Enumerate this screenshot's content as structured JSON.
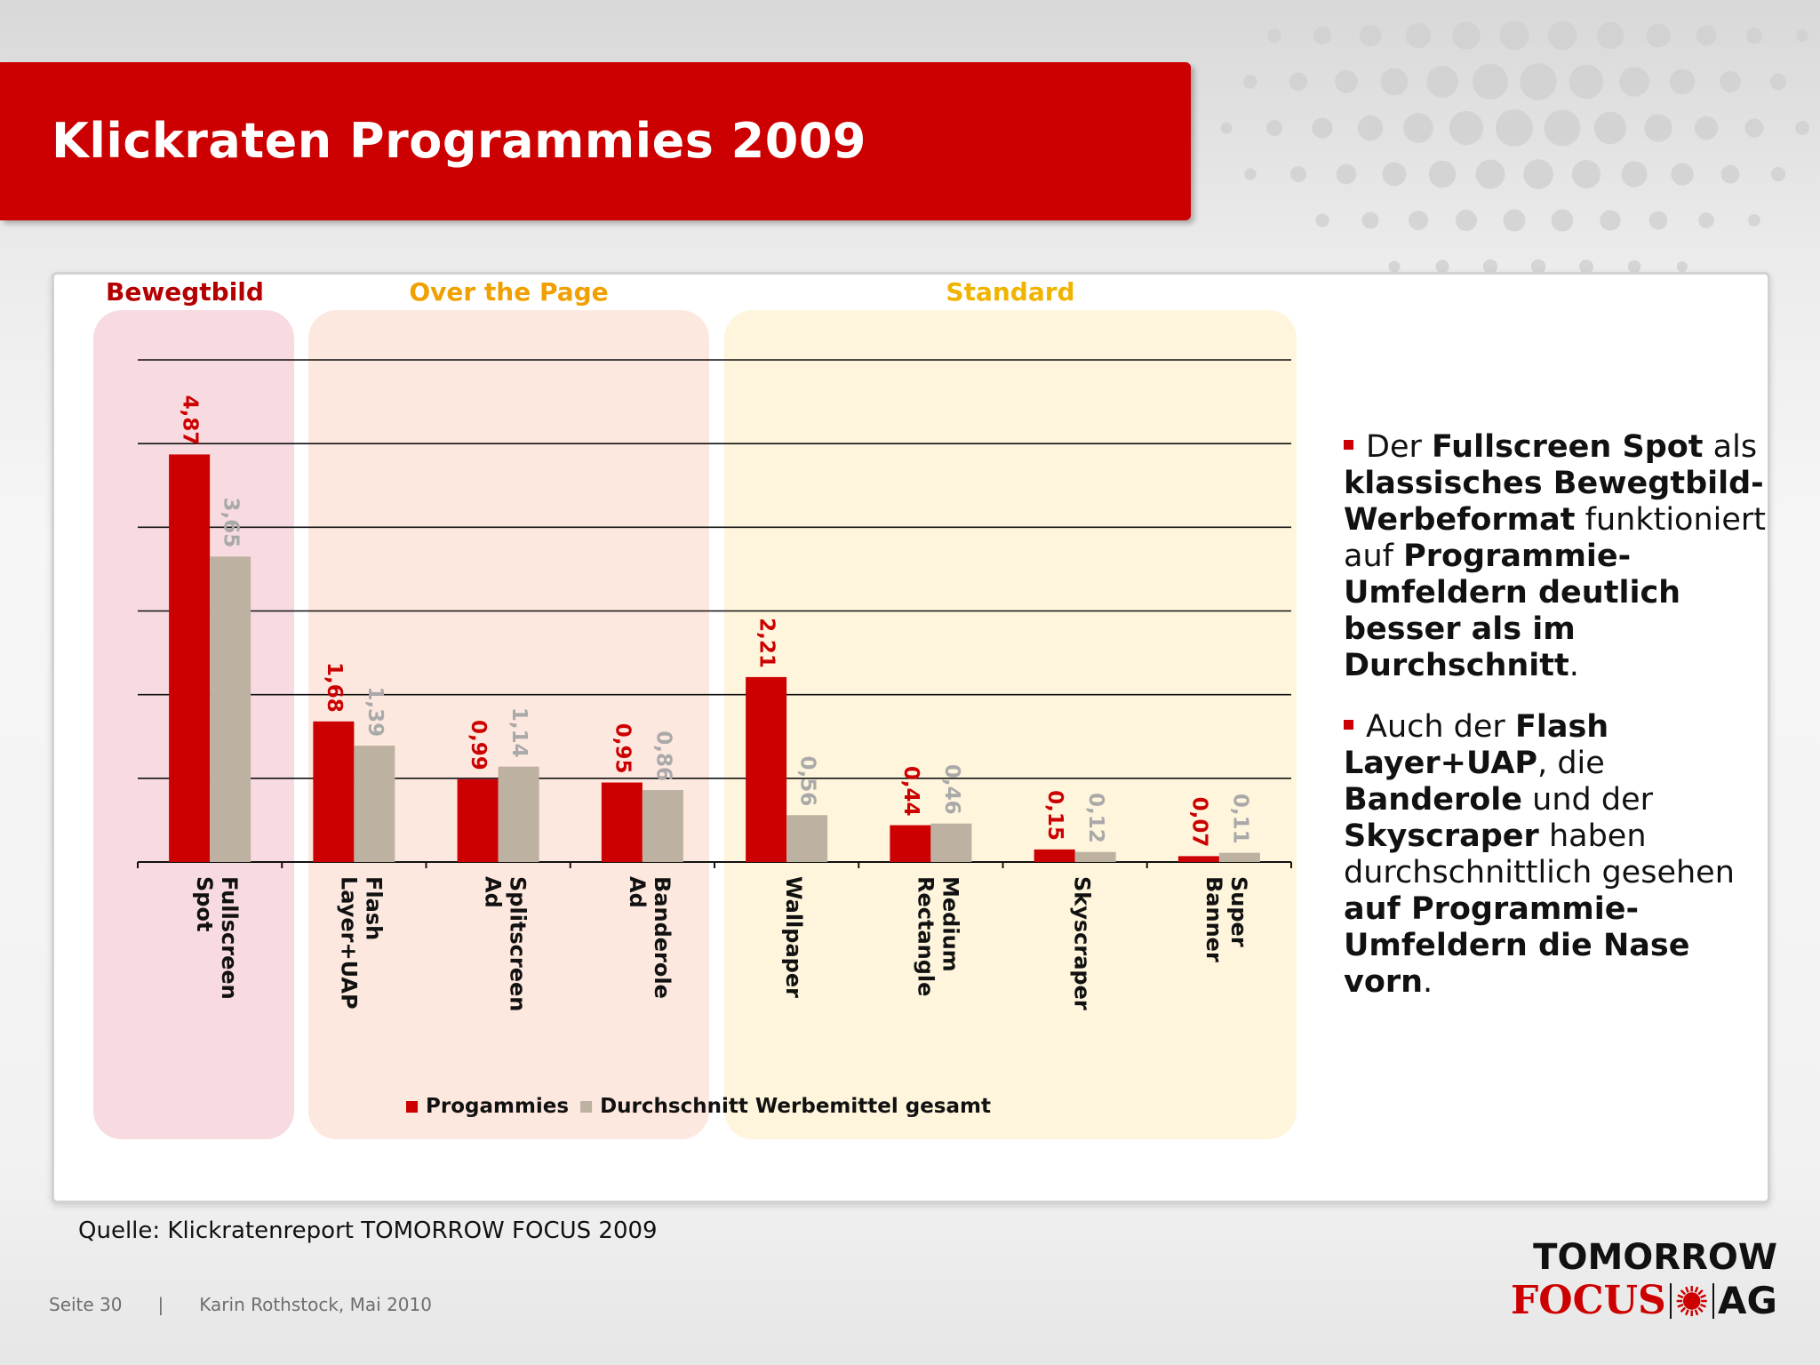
{
  "title": "Klickraten Programmies 2009",
  "chart_data": {
    "type": "bar",
    "groups": [
      {
        "name": "Bewegtbild",
        "color": "#b50000",
        "start": 0,
        "end": 0
      },
      {
        "name": "Over the Page",
        "color": "#f0a000",
        "start": 1,
        "end": 3
      },
      {
        "name": "Standard",
        "color": "#f0b400",
        "start": 4,
        "end": 7
      }
    ],
    "categories": [
      "Fullscreen Spot",
      "Flash Layer+UAP",
      "Splitscreen Ad",
      "Banderole Ad",
      "Wallpaper",
      "Medium Rectangle",
      "Skyscraper",
      "Super Banner"
    ],
    "series": [
      {
        "name": "Progammies",
        "color": "#cc0000",
        "label_color": "#cc0000",
        "values": [
          4.87,
          1.68,
          0.99,
          0.95,
          2.21,
          0.44,
          0.15,
          0.07
        ],
        "labels": [
          "4,87",
          "1,68",
          "0,99",
          "0,95",
          "2,21",
          "0,44",
          "0,15",
          "0,07"
        ]
      },
      {
        "name": "Durchschnitt Werbemittel gesamt",
        "color": "#bdb1a2",
        "label_color": "#a9a9a9",
        "values": [
          3.65,
          1.39,
          1.14,
          0.86,
          0.56,
          0.46,
          0.12,
          0.11
        ],
        "labels": [
          "3,65",
          "1,39",
          "1,14",
          "0,86",
          "0,56",
          "0,46",
          "0,12",
          "0,11"
        ]
      }
    ],
    "ylim": [
      0,
      6
    ],
    "grid": true,
    "legend": "bottom",
    "xlabel": "",
    "ylabel": ""
  },
  "bullets": {
    "b1": {
      "t1": "Der ",
      "b1": "Fullscreen Spot",
      "t2": " als ",
      "b2": "klassisches Bewegtbild-Werbeformat",
      "t3": " funktioniert auf ",
      "b3": "Programmie-Umfeldern deutlich besser als im Durchschnitt",
      "t4": "."
    },
    "b2": {
      "t1": "Auch der ",
      "b1": "Flash Layer+UAP",
      "t2": ", die ",
      "b2": "Banderole",
      "t3": " und der ",
      "b3": "Skyscraper",
      "t4": " haben durchschnittlich gesehen ",
      "b4": "auf Programmie-Umfeldern die Nase vorn",
      "t5": "."
    }
  },
  "source": "Quelle: Klickratenreport TOMORROW FOCUS 2009",
  "footer": {
    "page": "Seite 30",
    "separator": "|",
    "author": "Karin Rothstock, Mai 2010"
  },
  "logo": {
    "top": "TOMORROW",
    "focus": "FOCUS",
    "ag": "AG"
  }
}
